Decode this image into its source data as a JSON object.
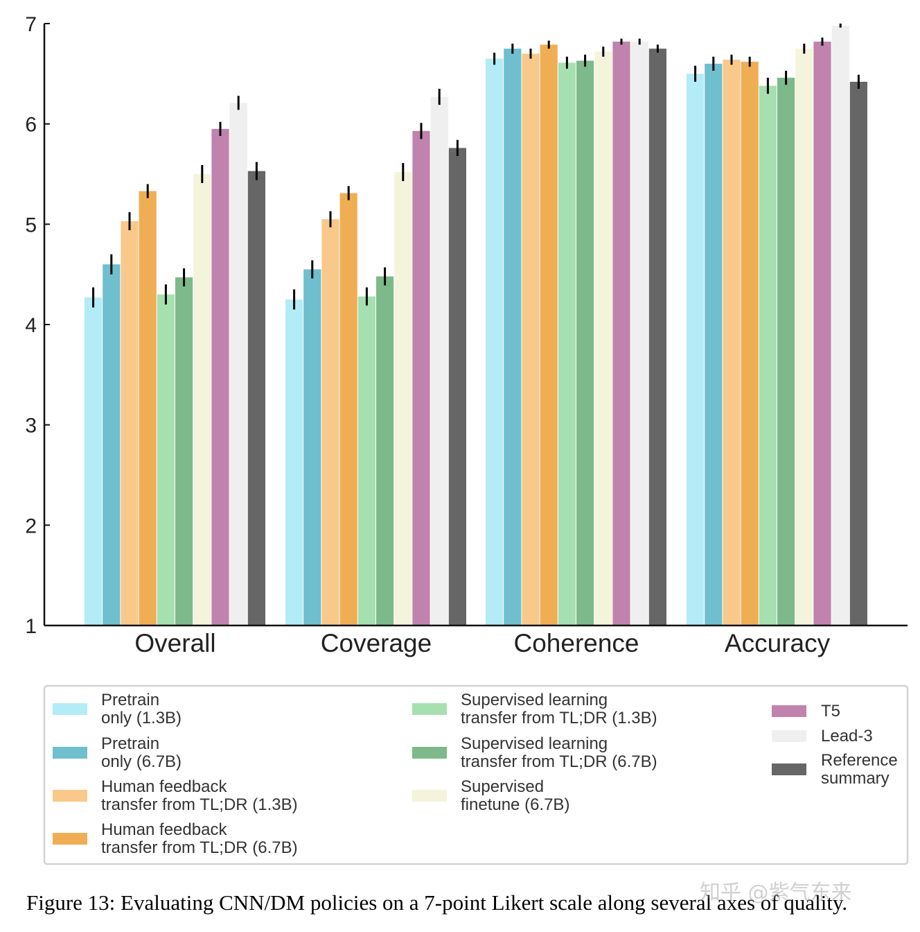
{
  "chart_data": {
    "type": "bar",
    "categories": [
      "Overall",
      "Coverage",
      "Coherence",
      "Accuracy"
    ],
    "ylim": [
      1,
      7
    ],
    "yticks": [
      "1",
      "2",
      "3",
      "4",
      "5",
      "6",
      "7"
    ],
    "series": [
      {
        "name": "Pretrain only (1.3B)",
        "legend_lines": [
          "Pretrain",
          "only (1.3B)"
        ],
        "color": "#b3ecf6",
        "values": [
          4.27,
          4.25,
          6.65,
          6.5
        ],
        "errors": [
          0.1,
          0.1,
          0.06,
          0.08
        ]
      },
      {
        "name": "Pretrain only (6.7B)",
        "legend_lines": [
          "Pretrain",
          "only (6.7B)"
        ],
        "color": "#6fbfce",
        "values": [
          4.6,
          4.55,
          6.75,
          6.6
        ],
        "errors": [
          0.1,
          0.09,
          0.05,
          0.07
        ]
      },
      {
        "name": "Human feedback transfer from TL;DR (1.3B)",
        "legend_lines": [
          "Human feedback",
          "transfer from TL;DR (1.3B)"
        ],
        "color": "#f8c98b",
        "values": [
          5.03,
          5.05,
          6.7,
          6.64
        ],
        "errors": [
          0.09,
          0.08,
          0.05,
          0.05
        ]
      },
      {
        "name": "Human feedback transfer from TL;DR (6.7B)",
        "legend_lines": [
          "Human feedback",
          "transfer from TL;DR (6.7B)"
        ],
        "color": "#f0ae54",
        "values": [
          5.33,
          5.31,
          6.79,
          6.62
        ],
        "errors": [
          0.07,
          0.07,
          0.04,
          0.05
        ]
      },
      {
        "name": "Supervised learning transfer from TL;DR (1.3B)",
        "legend_lines": [
          "Supervised learning",
          "transfer from TL;DR (1.3B)"
        ],
        "color": "#a6e0b0",
        "values": [
          4.3,
          4.28,
          6.61,
          6.38
        ],
        "errors": [
          0.1,
          0.09,
          0.06,
          0.08
        ]
      },
      {
        "name": "Supervised learning transfer from TL;DR (6.7B)",
        "legend_lines": [
          "Supervised learning",
          "transfer from TL;DR (6.7B)"
        ],
        "color": "#7db98a",
        "values": [
          4.47,
          4.48,
          6.63,
          6.46
        ],
        "errors": [
          0.09,
          0.09,
          0.06,
          0.07
        ]
      },
      {
        "name": "Supervised finetune (6.7B)",
        "legend_lines": [
          "Supervised",
          "finetune (6.7B)"
        ],
        "color": "#f4f3dc",
        "values": [
          5.5,
          5.52,
          6.72,
          6.75
        ],
        "errors": [
          0.09,
          0.09,
          0.05,
          0.05
        ]
      },
      {
        "name": "T5",
        "legend_lines": [
          "T5"
        ],
        "color": "#c083ad",
        "values": [
          5.95,
          5.93,
          6.82,
          6.82
        ],
        "errors": [
          0.07,
          0.08,
          0.03,
          0.04
        ]
      },
      {
        "name": "Lead-3",
        "legend_lines": [
          "Lead-3"
        ],
        "color": "#efefef",
        "values": [
          6.21,
          6.27,
          6.82,
          6.98
        ],
        "errors": [
          0.07,
          0.08,
          0.03,
          0.02
        ]
      },
      {
        "name": "Reference summary",
        "legend_lines": [
          "Reference",
          "summary"
        ],
        "color": "#666666",
        "values": [
          5.53,
          5.76,
          6.75,
          6.42
        ],
        "errors": [
          0.09,
          0.08,
          0.04,
          0.07
        ]
      }
    ]
  },
  "caption": "Figure 13: Evaluating CNN/DM policies on a 7-point Likert scale along several axes of quality.",
  "watermark": "知乎 @紫气东来"
}
